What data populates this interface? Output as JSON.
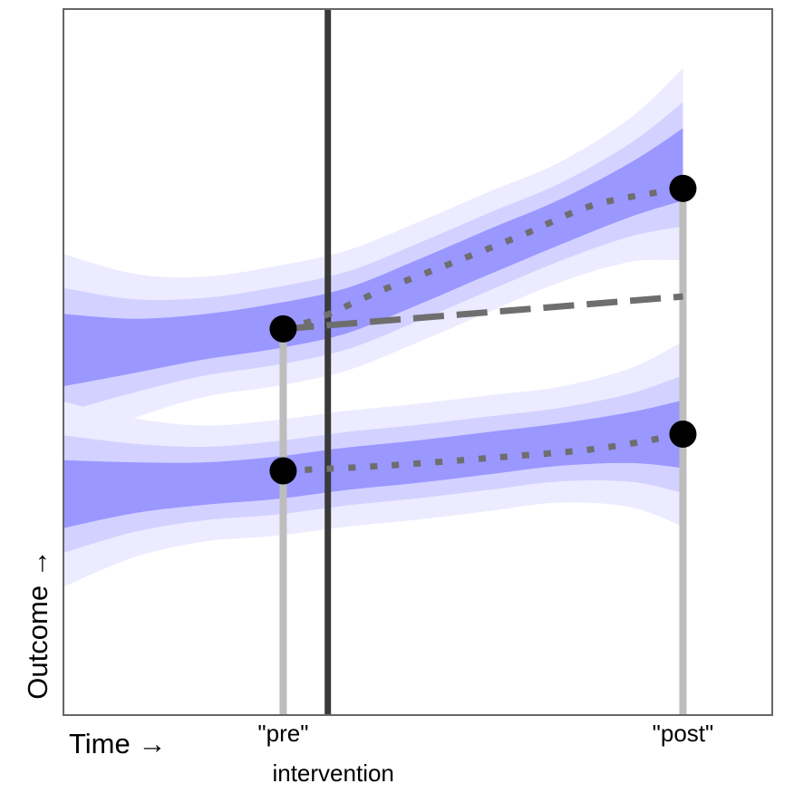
{
  "chart_data": {
    "type": "line",
    "title": "",
    "xlabel": "Time →",
    "ylabel": "Outcome →",
    "xlim": [
      0,
      100
    ],
    "ylim": [
      0,
      100
    ],
    "grid": false,
    "x_ticks": [
      {
        "x": 31,
        "label": "\"pre\""
      },
      {
        "x": 87.4,
        "label": "\"post\""
      }
    ],
    "intervention": {
      "x": 37.3,
      "label": "intervention"
    },
    "series": [
      {
        "group": "upper",
        "kind": "trend",
        "x": [
          0,
          10,
          20,
          30,
          40,
          50,
          60,
          70,
          80,
          87.4
        ],
        "y": [
          51.7,
          52.3,
          53.6,
          55.1,
          57.3,
          61.3,
          65.6,
          69.8,
          74.4,
          78
        ],
        "bands": [
          8.5,
          5.5,
          3.2
        ],
        "band_end_widening": 1.6
      },
      {
        "group": "lower",
        "kind": "trend",
        "x": [
          0,
          10,
          20,
          30,
          40,
          50,
          60,
          70,
          80,
          87.4
        ],
        "y": [
          31.3,
          32.2,
          32.8,
          33.6,
          34.9,
          35.9,
          37.1,
          38.3,
          39.3,
          39.8
        ],
        "bands": [
          8.2,
          5.2,
          3
        ],
        "band_end_widening": 1.6
      },
      {
        "group": "upper",
        "kind": "counterfactual",
        "style": "dashed",
        "x": [
          31,
          87.4
        ],
        "y": [
          54.7,
          59.3
        ]
      },
      {
        "group": "upper",
        "kind": "observed-change",
        "style": "dotted",
        "x": [
          31,
          36,
          45,
          55,
          65,
          75,
          87.4
        ],
        "y": [
          54.7,
          56.2,
          60.2,
          64.1,
          68.1,
          72.3,
          74.6
        ]
      },
      {
        "group": "lower",
        "kind": "observed-change",
        "style": "dotted",
        "x": [
          31,
          45,
          60,
          75,
          87.4
        ],
        "y": [
          34.6,
          35.3,
          36.4,
          37.7,
          39.8
        ]
      }
    ],
    "points": [
      {
        "group": "upper",
        "x": 31,
        "y": 54.7
      },
      {
        "group": "upper",
        "x": 87.4,
        "y": 74.6
      },
      {
        "group": "lower",
        "x": 31,
        "y": 34.6
      },
      {
        "group": "lower",
        "x": 87.4,
        "y": 39.8
      }
    ],
    "colors": {
      "band_outer": "#ECEBFF",
      "band_mid": "#D3D1FF",
      "band_inner": "#9A97FF",
      "dotted_line": "#6E6E6E",
      "dashed_line": "#6E6E6E",
      "marker_stem": "#BDBDBD",
      "intervention_line": "#3A3A3A",
      "point": "#000000",
      "frame": "#666666"
    }
  }
}
